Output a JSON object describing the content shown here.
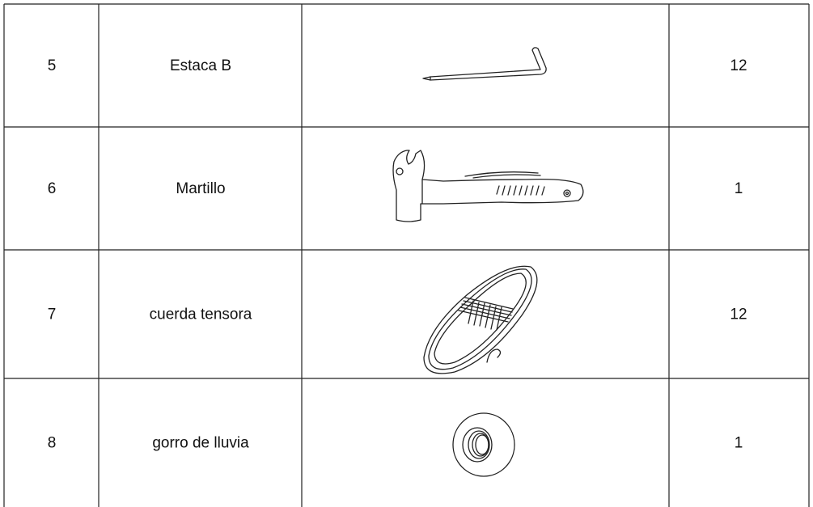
{
  "table": {
    "rows": [
      {
        "number": "5",
        "name": "Estaca B",
        "quantity": "12"
      },
      {
        "number": "6",
        "name": "Martillo",
        "quantity": "1"
      },
      {
        "number": "7",
        "name": "cuerda tensora",
        "quantity": "12"
      },
      {
        "number": "8",
        "name": "gorro de lluvia",
        "quantity": "1"
      }
    ]
  }
}
